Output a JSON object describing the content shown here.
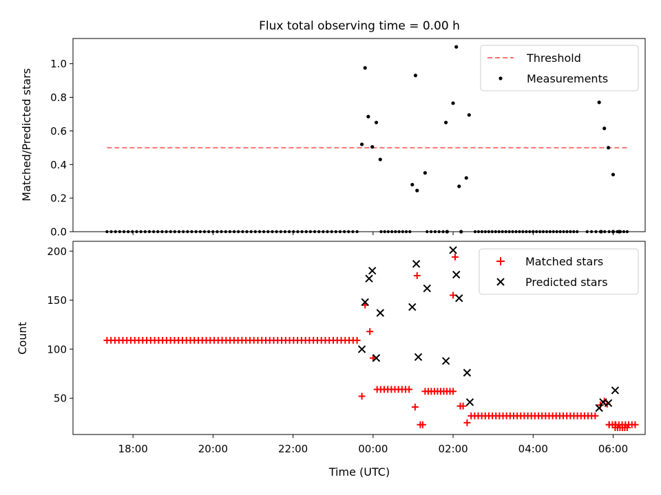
{
  "title": "Flux total observing time = 0.00 h",
  "chart_data": [
    {
      "type": "scatter",
      "panel": "top",
      "ylabel": "Matched/Predicted stars",
      "xlabel": "",
      "xlim": [
        16.5,
        30.8
      ],
      "ylim": [
        0,
        1.15
      ],
      "y_ticks": [
        0.0,
        0.2,
        0.4,
        0.6,
        0.8,
        1.0
      ],
      "y_tick_labels": [
        "0.0",
        "0.2",
        "0.4",
        "0.6",
        "0.8",
        "1.0"
      ],
      "legend": {
        "position": "top-right",
        "entries": [
          "Threshold",
          "Measurements"
        ]
      },
      "threshold": {
        "name": "Threshold",
        "value": 0.5,
        "x_range": [
          17.35,
          30.35
        ],
        "color": "#ff7070",
        "style": "dashed"
      },
      "measurements": {
        "name": "Measurements",
        "color": "#000000",
        "zero_runs": [
          {
            "start": 17.35,
            "end": 23.6,
            "count": 60
          },
          {
            "start": 24.2,
            "end": 24.92,
            "count": 9
          },
          {
            "start": 25.35,
            "end": 25.75,
            "count": 5
          },
          {
            "start": 26.55,
            "end": 28.0,
            "count": 18
          },
          {
            "start": 28.0,
            "end": 29.1,
            "count": 14
          },
          {
            "start": 29.35,
            "end": 29.9,
            "count": 6
          },
          {
            "start": 30.1,
            "end": 30.35,
            "count": 4
          }
        ],
        "points": [
          [
            23.72,
            0.52
          ],
          [
            23.8,
            0.975
          ],
          [
            23.88,
            0.685
          ],
          [
            23.98,
            0.505
          ],
          [
            24.08,
            0.65
          ],
          [
            24.18,
            0.43
          ],
          [
            24.98,
            0.28
          ],
          [
            25.1,
            0.245
          ],
          [
            25.06,
            0.93
          ],
          [
            25.3,
            0.35
          ],
          [
            25.85,
            0.0
          ],
          [
            25.82,
            0.65
          ],
          [
            26.0,
            0.765
          ],
          [
            26.08,
            1.1
          ],
          [
            26.15,
            0.27
          ],
          [
            26.2,
            0.0
          ],
          [
            26.33,
            0.32
          ],
          [
            26.4,
            0.695
          ],
          [
            29.65,
            0.77
          ],
          [
            29.78,
            0.615
          ],
          [
            29.88,
            0.5
          ],
          [
            30.0,
            0.0
          ],
          [
            30.15,
            0.0
          ],
          [
            29.7,
            0.0
          ],
          [
            30.0,
            0.34
          ]
        ]
      }
    },
    {
      "type": "scatter",
      "panel": "bottom",
      "ylabel": "Count",
      "xlabel": "Time (UTC)",
      "xlim": [
        16.5,
        30.8
      ],
      "ylim": [
        13,
        210
      ],
      "y_ticks": [
        50,
        100,
        150,
        200
      ],
      "y_tick_labels": [
        "50",
        "100",
        "150",
        "200"
      ],
      "x_ticks": [
        18,
        20,
        22,
        24,
        26,
        28,
        30
      ],
      "x_tick_labels": [
        "18:00",
        "20:00",
        "22:00",
        "00:00",
        "02:00",
        "04:00",
        "06:00"
      ],
      "legend": {
        "position": "top-right",
        "entries": [
          "Matched stars",
          "Predicted stars"
        ]
      },
      "matched": {
        "name": "Matched stars",
        "color": "#ff0000",
        "runs": [
          {
            "start": 17.35,
            "end": 23.6,
            "count": 64,
            "value": 109
          },
          {
            "start": 24.1,
            "end": 24.9,
            "count": 10,
            "value": 59
          },
          {
            "start": 25.3,
            "end": 26.0,
            "count": 10,
            "value": 57
          },
          {
            "start": 26.45,
            "end": 29.55,
            "count": 36,
            "value": 32
          },
          {
            "start": 29.9,
            "end": 30.05,
            "count": 2,
            "value": 23
          },
          {
            "start": 29.9,
            "end": 30.55,
            "count": 9,
            "value": 23
          },
          {
            "start": 30.05,
            "end": 30.35,
            "count": 6,
            "value": 20
          }
        ],
        "points": [
          [
            23.72,
            52
          ],
          [
            23.8,
            145
          ],
          [
            23.92,
            118
          ],
          [
            24.0,
            91
          ],
          [
            25.05,
            41
          ],
          [
            25.1,
            175
          ],
          [
            25.18,
            23
          ],
          [
            25.24,
            23
          ],
          [
            26.0,
            155
          ],
          [
            26.05,
            194
          ],
          [
            26.18,
            42
          ],
          [
            26.25,
            42
          ],
          [
            26.35,
            25
          ],
          [
            29.68,
            43
          ],
          [
            29.78,
            47
          ],
          [
            29.85,
            44
          ]
        ]
      },
      "predicted": {
        "name": "Predicted stars",
        "color": "#000000",
        "points": [
          [
            23.72,
            100
          ],
          [
            23.8,
            148
          ],
          [
            23.9,
            172
          ],
          [
            23.98,
            180
          ],
          [
            24.08,
            91
          ],
          [
            24.18,
            137
          ],
          [
            24.98,
            143
          ],
          [
            25.08,
            187
          ],
          [
            25.13,
            92
          ],
          [
            25.35,
            162
          ],
          [
            25.82,
            88
          ],
          [
            26.0,
            201
          ],
          [
            26.08,
            176
          ],
          [
            26.15,
            152
          ],
          [
            26.35,
            76
          ],
          [
            26.42,
            46
          ],
          [
            29.65,
            40
          ],
          [
            29.75,
            46
          ],
          [
            29.88,
            45
          ],
          [
            30.05,
            58
          ]
        ]
      }
    }
  ]
}
